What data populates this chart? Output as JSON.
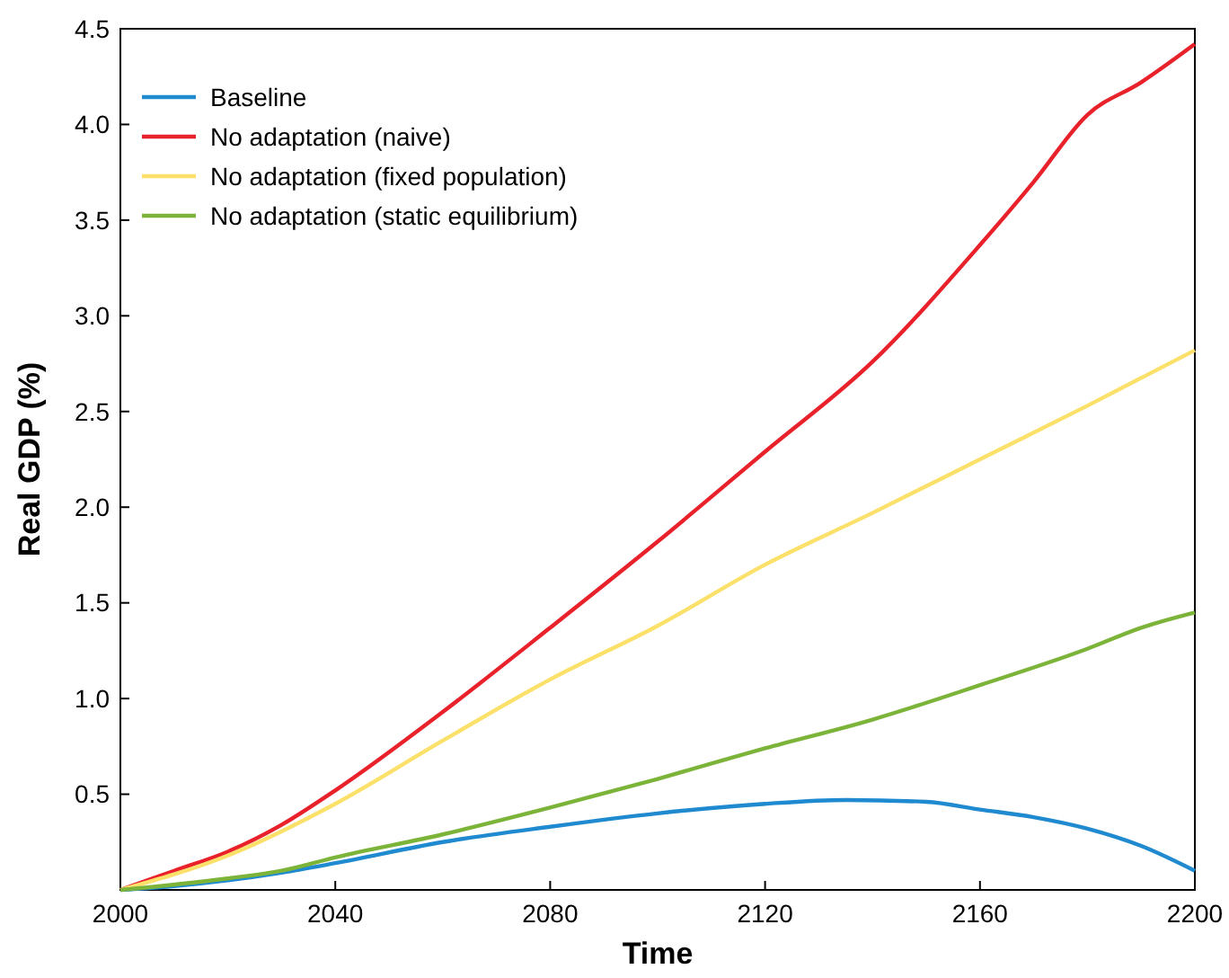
{
  "chart_data": {
    "type": "line",
    "xlabel": "Time",
    "ylabel": "Real GDP (%)",
    "xlim": [
      2000,
      2200
    ],
    "xticks": [
      2000,
      2040,
      2080,
      2120,
      2160,
      2200
    ],
    "ylim": [
      0,
      4.5
    ],
    "yticks": [
      0.5,
      {
        "value": 1,
        "label": "1.0"
      },
      1.5,
      {
        "value": 2,
        "label": "2.0"
      },
      2.5,
      {
        "value": 3,
        "label": "3.0"
      },
      3.5,
      {
        "value": 4,
        "label": "4.0"
      },
      4.5
    ],
    "grid": false,
    "legend": "top left",
    "series": [
      {
        "name": "Baseline",
        "color": "#1f8ad0",
        "x": [
          2000,
          2010,
          2020,
          2030,
          2040,
          2060,
          2080,
          2100,
          2120,
          2135,
          2150,
          2160,
          2170,
          2180,
          2190,
          2200
        ],
        "values": [
          0,
          0.02,
          0.05,
          0.09,
          0.14,
          0.25,
          0.33,
          0.4,
          0.45,
          0.47,
          0.46,
          0.42,
          0.38,
          0.32,
          0.23,
          0.1
        ]
      },
      {
        "name": "No adaptation (naive)",
        "color": "#e8212a",
        "x": [
          2000,
          2010,
          2020,
          2030,
          2040,
          2060,
          2080,
          2100,
          2120,
          2140,
          2160,
          2170,
          2180,
          2190,
          2200
        ],
        "values": [
          0,
          0.1,
          0.2,
          0.34,
          0.52,
          0.93,
          1.37,
          1.82,
          2.29,
          2.76,
          3.37,
          3.7,
          4.05,
          4.22,
          4.42
        ]
      },
      {
        "name": "No adaptation (fixed population)",
        "color": "#fbe06a",
        "x": [
          2000,
          2020,
          2040,
          2060,
          2080,
          2100,
          2120,
          2140,
          2160,
          2180,
          2200
        ],
        "values": [
          0,
          0.18,
          0.45,
          0.78,
          1.1,
          1.38,
          1.7,
          1.97,
          2.25,
          2.53,
          2.82
        ]
      },
      {
        "name": "No adaptation (static equilibrium)",
        "color": "#7cb43a",
        "x": [
          2000,
          2020,
          2030,
          2040,
          2060,
          2080,
          2100,
          2120,
          2140,
          2160,
          2180,
          2190,
          2200
        ],
        "values": [
          0,
          0.06,
          0.1,
          0.17,
          0.29,
          0.43,
          0.58,
          0.74,
          0.89,
          1.07,
          1.26,
          1.37,
          1.45
        ]
      }
    ]
  }
}
